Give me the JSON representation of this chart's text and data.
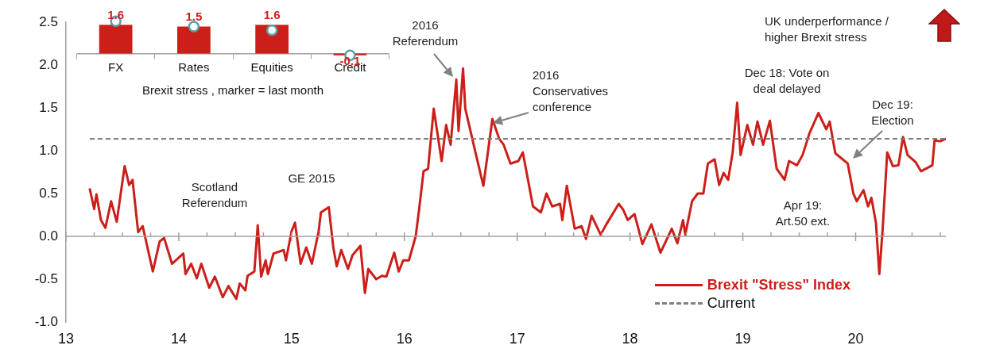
{
  "chart_data": [
    {
      "type": "line",
      "x": [
        13.21,
        13.25,
        13.27,
        13.31,
        13.35,
        13.4,
        13.45,
        13.52,
        13.56,
        13.59,
        13.64,
        13.68,
        13.77,
        13.83,
        13.87,
        13.94,
        14.04,
        14.06,
        14.11,
        14.16,
        14.2,
        14.27,
        14.32,
        14.39,
        14.44,
        14.51,
        14.54,
        14.59,
        14.61,
        14.67,
        14.7,
        14.73,
        14.77,
        14.79,
        14.84,
        14.93,
        14.95,
        15.0,
        15.03,
        15.08,
        15.13,
        15.18,
        15.24,
        15.26,
        15.33,
        15.37,
        15.4,
        15.44,
        15.5,
        15.54,
        15.61,
        15.65,
        15.68,
        15.75,
        15.8,
        15.84,
        15.91,
        15.95,
        15.99,
        16.04,
        16.1,
        16.13,
        16.17,
        16.21,
        16.26,
        16.33,
        16.37,
        16.41,
        16.46,
        16.48,
        16.52,
        16.54,
        16.63,
        16.7,
        16.78,
        16.84,
        16.88,
        16.94,
        17.01,
        17.05,
        17.14,
        17.21,
        17.26,
        17.31,
        17.38,
        17.4,
        17.44,
        17.51,
        17.57,
        17.61,
        17.66,
        17.74,
        17.79,
        17.9,
        17.94,
        17.98,
        18.04,
        18.11,
        18.19,
        18.27,
        18.37,
        18.42,
        18.47,
        18.49,
        18.55,
        18.6,
        18.65,
        18.69,
        18.75,
        18.79,
        18.83,
        18.87,
        18.91,
        18.95,
        18.98,
        19.04,
        19.09,
        19.13,
        19.18,
        19.24,
        19.3,
        19.37,
        19.41,
        19.48,
        19.53,
        19.59,
        19.67,
        19.74,
        19.77,
        19.82,
        19.93,
        19.98,
        20.01,
        20.07,
        20.11,
        20.14,
        20.18,
        20.21,
        20.24,
        20.28,
        20.33,
        20.38,
        20.42,
        20.46,
        20.53,
        20.58,
        20.68,
        20.7,
        20.75,
        20.8
      ],
      "series": [
        {
          "name": "Brexit \"Stress\" Index",
          "color": "#cc1f1a",
          "values": [
            0.56,
            0.32,
            0.49,
            0.19,
            0.1,
            0.41,
            0.17,
            0.82,
            0.6,
            0.66,
            0.05,
            0.12,
            -0.41,
            -0.06,
            -0.02,
            -0.32,
            -0.2,
            -0.44,
            -0.32,
            -0.49,
            -0.32,
            -0.6,
            -0.47,
            -0.71,
            -0.58,
            -0.73,
            -0.55,
            -0.63,
            -0.46,
            -0.41,
            0.13,
            -0.47,
            -0.28,
            -0.44,
            -0.2,
            -0.16,
            -0.28,
            0.06,
            0.16,
            -0.32,
            -0.13,
            -0.32,
            0.06,
            0.28,
            0.34,
            -0.13,
            -0.35,
            -0.16,
            -0.38,
            -0.22,
            -0.11,
            -0.66,
            -0.38,
            -0.5,
            -0.46,
            -0.47,
            -0.19,
            -0.41,
            -0.28,
            -0.28,
            0.0,
            0.31,
            0.76,
            0.79,
            1.49,
            0.88,
            1.3,
            1.07,
            1.83,
            1.23,
            1.96,
            1.49,
            0.98,
            0.59,
            1.37,
            1.14,
            1.07,
            0.85,
            0.88,
            0.98,
            0.35,
            0.28,
            0.5,
            0.35,
            0.38,
            0.19,
            0.59,
            0.09,
            0.12,
            -0.03,
            0.24,
            0.02,
            0.14,
            0.38,
            0.31,
            0.19,
            0.26,
            -0.09,
            0.14,
            -0.19,
            0.09,
            -0.08,
            0.19,
            0.02,
            0.41,
            0.5,
            0.5,
            0.85,
            0.9,
            0.6,
            0.74,
            0.66,
            0.98,
            1.56,
            0.95,
            1.3,
            1.07,
            1.34,
            1.07,
            1.35,
            0.79,
            0.66,
            0.88,
            0.83,
            0.95,
            1.2,
            1.44,
            1.25,
            1.34,
            0.97,
            0.85,
            0.5,
            0.41,
            0.54,
            0.35,
            0.45,
            0.16,
            -0.44,
            0.09,
            0.98,
            0.82,
            0.83,
            1.16,
            0.95,
            0.87,
            0.76,
            0.83,
            1.12,
            1.11,
            1.14
          ]
        }
      ],
      "xlim": [
        13,
        20.8
      ],
      "xticks": [
        13,
        {
          "value": 13.25,
          "label": null
        },
        {
          "value": 13.5,
          "label": null
        },
        {
          "value": 13.75,
          "label": null
        },
        14,
        {
          "value": 14.25,
          "label": null
        },
        {
          "value": 14.5,
          "label": null
        },
        {
          "value": 14.75,
          "label": null
        },
        15,
        {
          "value": 15.25,
          "label": null
        },
        {
          "value": 15.5,
          "label": null
        },
        {
          "value": 15.75,
          "label": null
        },
        16,
        {
          "value": 16.25,
          "label": null
        },
        {
          "value": 16.5,
          "label": null
        },
        {
          "value": 16.75,
          "label": null
        },
        17,
        {
          "value": 17.25,
          "label": null
        },
        {
          "value": 17.5,
          "label": null
        },
        {
          "value": 17.75,
          "label": null
        },
        18,
        {
          "value": 18.25,
          "label": null
        },
        {
          "value": 18.5,
          "label": null
        },
        {
          "value": 18.75,
          "label": null
        },
        19,
        {
          "value": 19.25,
          "label": null
        },
        {
          "value": 19.5,
          "label": null
        },
        {
          "value": 19.75,
          "label": null
        },
        20,
        {
          "value": 20.25,
          "label": null
        },
        {
          "value": 20.5,
          "label": null
        },
        {
          "value": 20.75,
          "label": null
        }
      ],
      "ylim": [
        -1,
        2.5
      ],
      "yticks": [
        {
          "value": -1,
          "label": "-1.0"
        },
        -0.5,
        {
          "value": 0,
          "label": "0.0"
        },
        0.5,
        {
          "value": 1,
          "label": "1.0"
        },
        1.5,
        {
          "value": 2,
          "label": "2.0"
        },
        2.5
      ],
      "ref_lines": [
        {
          "axis": "y",
          "value": 1.14,
          "label": "Current",
          "color": "#7f7f7f",
          "line_style": "dashed"
        }
      ],
      "annotations": [
        "Scotland\nReferendum",
        "GE 2015",
        "2016\nReferendum",
        "2016\nConservatives\nconference",
        "Dec 18: Vote on\ndeal delayed",
        "Dec 19:\nElection",
        "Apr 19:\nArt.50 ext.",
        "UK underperformance /\nhigher Brexit stress"
      ],
      "legend": "bottom right",
      "marker": "none",
      "line_style": "solid"
    },
    {
      "type": "bar",
      "categories": [
        "FX",
        "Rates",
        "Equities",
        "Credit"
      ],
      "xlabel": "Brexit stress , marker = last month",
      "series": [
        {
          "color": "#cc1f1a",
          "values": [
            1.6,
            1.5,
            1.6,
            -0.1
          ],
          "value_labels": [
            "1.6",
            "1.5",
            "1.6",
            "-0.1"
          ]
        },
        {
          "type": "scatter",
          "color": "#5b9ea6",
          "x": [
            "FX",
            "Rates",
            "Equities",
            "Credit"
          ],
          "values": [
            1.8,
            1.5,
            1.3,
            -0.1
          ]
        }
      ],
      "tick_labels": "x",
      "marker": "circle"
    }
  ]
}
